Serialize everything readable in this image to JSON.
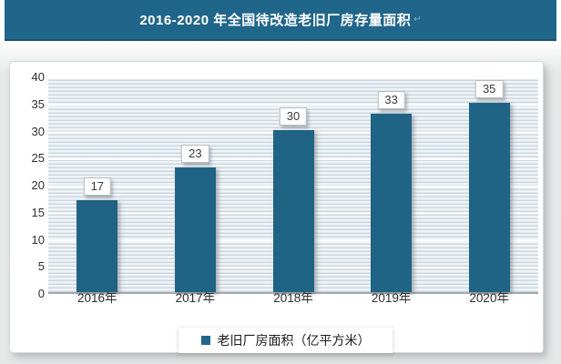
{
  "page": {
    "title": "2016-2020 年全国待改造老旧厂房存量面积",
    "title_suffix": "↵"
  },
  "colors": {
    "banner_bg": "#20668a",
    "banner_border": "#1b5273",
    "bar_fill": "#1f6385",
    "plot_stripe_light": "#f0f4f7",
    "plot_stripe_dark": "#ccd7df",
    "axis_line": "#a3a8ac",
    "data_label_text": "#3a3a3a"
  },
  "legend": {
    "marker": "square",
    "marker_color": "#20668a",
    "label": "老旧厂房面积（亿平方米）"
  },
  "chart_data": {
    "type": "bar",
    "title": "2016-2020 年全国待改造老旧厂房存量面积",
    "categories": [
      "2016年",
      "2017年",
      "2018年",
      "2019年",
      "2020年"
    ],
    "values": [
      17,
      23,
      30,
      33,
      35
    ],
    "series_name": "老旧厂房面积（亿平方米）",
    "xlabel": "",
    "ylabel": "",
    "ylim": [
      0,
      40
    ],
    "ytick_step": 5,
    "yticks": [
      0,
      5,
      10,
      15,
      20,
      25,
      30,
      35,
      40
    ],
    "grid": true,
    "data_labels": true,
    "legend_position": "bottom"
  }
}
